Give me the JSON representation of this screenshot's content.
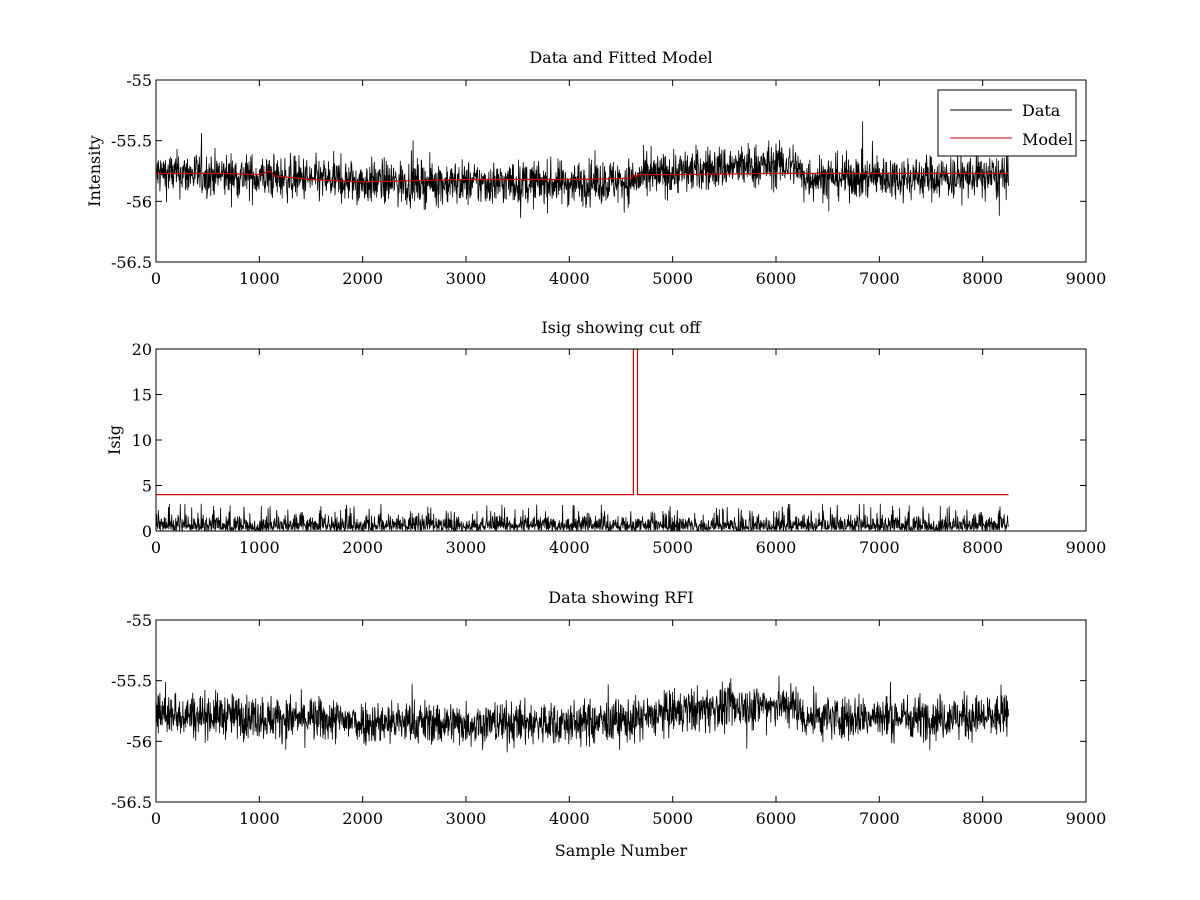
{
  "figure": {
    "background": "#ffffff"
  },
  "chart_data": [
    {
      "type": "line",
      "title": "Data and Fitted Model",
      "xlabel": "",
      "ylabel": "Intensity",
      "xlim": [
        0,
        9000
      ],
      "ylim": [
        -56.5,
        -55
      ],
      "xticks": [
        0,
        1000,
        2000,
        3000,
        4000,
        5000,
        6000,
        7000,
        8000,
        9000
      ],
      "yticks": [
        -55,
        -55.5,
        -56,
        -56.5
      ],
      "grid": false,
      "legend": {
        "position": "top-right",
        "entries": [
          "Data",
          "Model"
        ]
      },
      "series": [
        {
          "name": "Data",
          "color": "#000000",
          "kind": "noise",
          "x_range": [
            0,
            8250
          ],
          "noise_amplitude": 0.09,
          "baseline": [
            [
              0,
              -55.77
            ],
            [
              500,
              -55.78
            ],
            [
              1000,
              -55.8
            ],
            [
              1500,
              -55.82
            ],
            [
              2000,
              -55.84
            ],
            [
              3000,
              -55.85
            ],
            [
              4000,
              -55.85
            ],
            [
              4600,
              -55.83
            ],
            [
              5000,
              -55.76
            ],
            [
              5500,
              -55.72
            ],
            [
              6000,
              -55.7
            ],
            [
              6200,
              -55.7
            ],
            [
              6250,
              -55.8
            ],
            [
              7000,
              -55.8
            ],
            [
              8250,
              -55.8
            ]
          ]
        },
        {
          "name": "Model",
          "color": "#cc0000",
          "kind": "line",
          "points": [
            [
              0,
              -55.77
            ],
            [
              600,
              -55.77
            ],
            [
              1000,
              -55.78
            ],
            [
              1100,
              -55.75
            ],
            [
              1150,
              -55.79
            ],
            [
              1500,
              -55.82
            ],
            [
              2000,
              -55.84
            ],
            [
              2500,
              -55.83
            ],
            [
              3000,
              -55.82
            ],
            [
              4000,
              -55.82
            ],
            [
              4600,
              -55.81
            ],
            [
              4620,
              -55.78
            ],
            [
              4650,
              -55.8
            ],
            [
              4660,
              -55.78
            ],
            [
              5000,
              -55.78
            ],
            [
              6000,
              -55.77
            ],
            [
              7000,
              -55.77
            ],
            [
              8250,
              -55.77
            ]
          ]
        }
      ]
    },
    {
      "type": "line",
      "title": "Isig showing cut off",
      "xlabel": "",
      "ylabel": "Isig",
      "xlim": [
        0,
        9000
      ],
      "ylim": [
        0,
        20
      ],
      "xticks": [
        0,
        1000,
        2000,
        3000,
        4000,
        5000,
        6000,
        7000,
        8000,
        9000
      ],
      "yticks": [
        0,
        5,
        10,
        15,
        20
      ],
      "grid": false,
      "series": [
        {
          "color": "#000000",
          "kind": "noise_positive",
          "x_range": [
            0,
            8250
          ],
          "noise_amplitude": 2.5,
          "baseline": [
            [
              0,
              0
            ],
            [
              8250,
              0
            ]
          ]
        },
        {
          "color": "#cc0000",
          "kind": "line",
          "points": [
            [
              0,
              4
            ],
            [
              4620,
              4
            ],
            [
              4620,
              20
            ],
            [
              4640,
              20
            ],
            [
              4640,
              20
            ],
            [
              4660,
              20
            ],
            [
              4660,
              4
            ],
            [
              8250,
              4
            ]
          ]
        }
      ]
    },
    {
      "type": "line",
      "title": "Data showing RFI",
      "xlabel": "Sample Number",
      "ylabel": "",
      "xlim": [
        0,
        9000
      ],
      "ylim": [
        -56.5,
        -55
      ],
      "xticks": [
        0,
        1000,
        2000,
        3000,
        4000,
        5000,
        6000,
        7000,
        8000,
        9000
      ],
      "yticks": [
        -55,
        -55.5,
        -56,
        -56.5
      ],
      "grid": false,
      "series": [
        {
          "color": "#000000",
          "kind": "noise",
          "x_range": [
            0,
            8250
          ],
          "noise_amplitude": 0.09,
          "baseline": [
            [
              0,
              -55.77
            ],
            [
              500,
              -55.78
            ],
            [
              1000,
              -55.8
            ],
            [
              1500,
              -55.82
            ],
            [
              2000,
              -55.84
            ],
            [
              3000,
              -55.85
            ],
            [
              4000,
              -55.85
            ],
            [
              4600,
              -55.83
            ],
            [
              5000,
              -55.76
            ],
            [
              5500,
              -55.72
            ],
            [
              6000,
              -55.7
            ],
            [
              6200,
              -55.7
            ],
            [
              6250,
              -55.8
            ],
            [
              7000,
              -55.8
            ],
            [
              8250,
              -55.8
            ]
          ]
        }
      ]
    }
  ]
}
